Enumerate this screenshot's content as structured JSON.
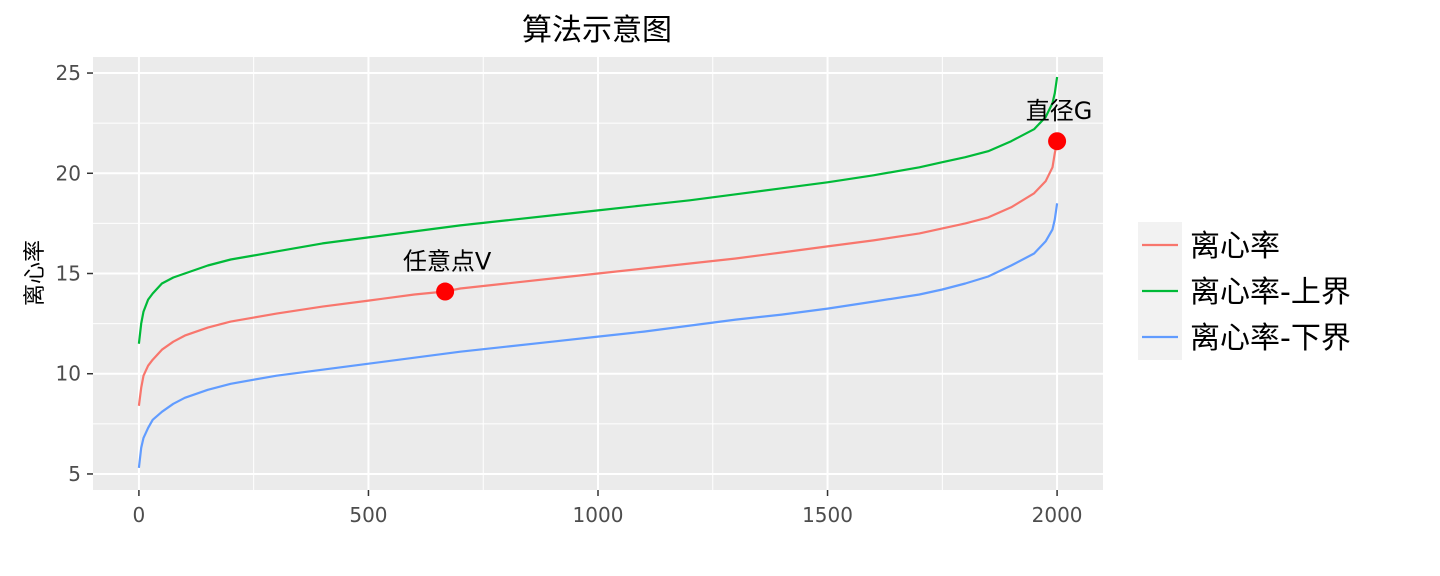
{
  "chart_data": {
    "type": "line",
    "title": "算法示意图",
    "xlabel": "",
    "ylabel": "离心率",
    "xlim": [
      -100,
      2100
    ],
    "ylim": [
      4.2,
      25.8
    ],
    "x_ticks": [
      0,
      500,
      1000,
      1500,
      2000
    ],
    "y_ticks": [
      5,
      10,
      15,
      20,
      25
    ],
    "grid": true,
    "legend_position": "right",
    "series": [
      {
        "name": "离心率",
        "color": "#F8766D",
        "x": [
          0,
          5,
          10,
          20,
          30,
          50,
          75,
          100,
          150,
          200,
          250,
          300,
          400,
          500,
          600,
          667,
          700,
          800,
          900,
          1000,
          1100,
          1200,
          1300,
          1400,
          1500,
          1600,
          1700,
          1750,
          1800,
          1850,
          1900,
          1950,
          1975,
          1990,
          1995,
          2000
        ],
        "y": [
          8.4,
          9.3,
          9.9,
          10.4,
          10.7,
          11.2,
          11.6,
          11.9,
          12.3,
          12.6,
          12.8,
          13.0,
          13.35,
          13.65,
          13.95,
          14.1,
          14.25,
          14.5,
          14.75,
          15.0,
          15.25,
          15.5,
          15.75,
          16.05,
          16.35,
          16.65,
          17.0,
          17.25,
          17.5,
          17.8,
          18.3,
          19.0,
          19.6,
          20.3,
          21.0,
          21.6
        ]
      },
      {
        "name": "离心率-上界",
        "color": "#00BA38",
        "x": [
          0,
          5,
          10,
          20,
          30,
          50,
          75,
          100,
          150,
          200,
          250,
          300,
          400,
          500,
          600,
          700,
          800,
          900,
          1000,
          1100,
          1200,
          1300,
          1400,
          1500,
          1600,
          1700,
          1750,
          1800,
          1850,
          1900,
          1950,
          1975,
          1990,
          1995,
          2000
        ],
        "y": [
          11.5,
          12.5,
          13.1,
          13.7,
          14.0,
          14.5,
          14.8,
          15.0,
          15.4,
          15.7,
          15.9,
          16.1,
          16.5,
          16.8,
          17.1,
          17.4,
          17.65,
          17.9,
          18.15,
          18.4,
          18.65,
          18.95,
          19.25,
          19.55,
          19.9,
          20.3,
          20.55,
          20.8,
          21.1,
          21.6,
          22.2,
          22.8,
          23.5,
          24.0,
          24.8
        ]
      },
      {
        "name": "离心率-下界",
        "color": "#619CFF",
        "x": [
          0,
          5,
          10,
          20,
          30,
          50,
          75,
          100,
          150,
          200,
          250,
          300,
          400,
          500,
          600,
          700,
          800,
          900,
          1000,
          1100,
          1200,
          1300,
          1400,
          1500,
          1600,
          1700,
          1750,
          1800,
          1850,
          1900,
          1950,
          1975,
          1990,
          1995,
          2000
        ],
        "y": [
          5.3,
          6.3,
          6.8,
          7.3,
          7.7,
          8.1,
          8.5,
          8.8,
          9.2,
          9.5,
          9.7,
          9.9,
          10.2,
          10.5,
          10.8,
          11.1,
          11.35,
          11.6,
          11.85,
          12.1,
          12.4,
          12.7,
          12.95,
          13.25,
          13.6,
          13.95,
          14.2,
          14.5,
          14.85,
          15.4,
          16.0,
          16.6,
          17.2,
          17.7,
          18.5
        ]
      }
    ],
    "annotations": [
      {
        "text": "任意点V",
        "x": 667,
        "y": 14.1,
        "color": "#FF0000"
      },
      {
        "text": "直径G",
        "x": 2000,
        "y": 21.6,
        "color": "#FF0000"
      }
    ]
  }
}
